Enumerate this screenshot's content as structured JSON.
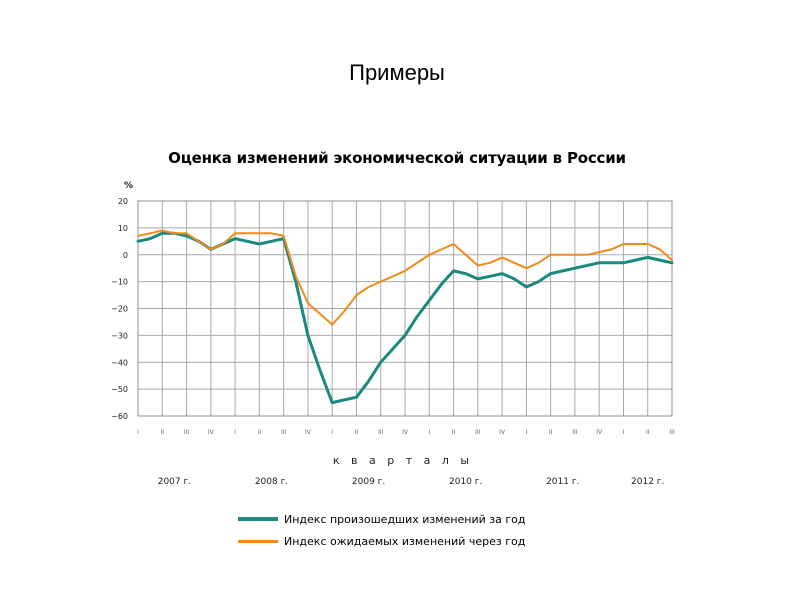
{
  "slide": {
    "title": "Примеры"
  },
  "chart_data": {
    "type": "line",
    "title": "Оценка изменений экономической ситуации в России",
    "ylabel": "%",
    "xlabel": "к в а р т а л ы",
    "ylim": [
      -60,
      20
    ],
    "yticks": [
      "20",
      "10",
      "0",
      "−10",
      "−20",
      "−30",
      "−40",
      "−50",
      "−60"
    ],
    "ytick_values": [
      20,
      10,
      0,
      -10,
      -20,
      -30,
      -40,
      -50,
      -60
    ],
    "categories": [
      "I",
      "II",
      "III",
      "IV",
      "I",
      "II",
      "III",
      "IV",
      "I",
      "II",
      "III",
      "IV",
      "I",
      "II",
      "III",
      "IV",
      "I",
      "II",
      "III",
      "IV",
      "I",
      "II",
      "III"
    ],
    "years": [
      {
        "label": "2007 г.",
        "start": 0,
        "end": 3
      },
      {
        "label": "2008 г.",
        "start": 4,
        "end": 7
      },
      {
        "label": "2009 г.",
        "start": 8,
        "end": 11
      },
      {
        "label": "2010 г.",
        "start": 12,
        "end": 15
      },
      {
        "label": "2011 г.",
        "start": 16,
        "end": 19
      },
      {
        "label": "2012 г.",
        "start": 20,
        "end": 22
      }
    ],
    "grid": true,
    "legend_position": "bottom",
    "series": [
      {
        "name": "Индекс произошедших изменений за год",
        "color": "#1a8a7e",
        "width": 3,
        "x": [
          0,
          0.5,
          1,
          1.5,
          2,
          2.5,
          3,
          3.5,
          4,
          4.5,
          5,
          5.5,
          6,
          6.5,
          7,
          7.5,
          8,
          8.5,
          9,
          9.5,
          10,
          10.5,
          11,
          11.5,
          12,
          12.5,
          13,
          13.5,
          14,
          14.5,
          15,
          15.5,
          16,
          16.5,
          17,
          17.5,
          18,
          18.5,
          19,
          19.5,
          20,
          20.5,
          21,
          21.5,
          22
        ],
        "values": [
          5,
          6,
          8,
          8,
          7,
          5,
          2,
          4,
          6,
          5,
          4,
          5,
          6,
          -10,
          -30,
          -43,
          -55,
          -54,
          -53,
          -47,
          -40,
          -35,
          -30,
          -23,
          -17,
          -11,
          -6,
          -7,
          -9,
          -8,
          -7,
          -9,
          -12,
          -10,
          -7,
          -6,
          -5,
          -4,
          -3,
          -3,
          -3,
          -2,
          -1,
          -2,
          -3
        ]
      },
      {
        "name": "Индекс ожидаемых изменений через год",
        "color": "#f08a1c",
        "width": 2,
        "x": [
          0,
          0.5,
          1,
          1.5,
          2,
          2.5,
          3,
          3.5,
          4,
          4.5,
          5,
          5.5,
          6,
          6.5,
          7,
          7.5,
          8,
          8.5,
          9,
          9.5,
          10,
          10.5,
          11,
          11.5,
          12,
          12.5,
          13,
          13.5,
          14,
          14.5,
          15,
          15.5,
          16,
          16.5,
          17,
          17.5,
          18,
          18.5,
          19,
          19.5,
          20,
          20.5,
          21,
          21.5,
          22
        ],
        "values": [
          7,
          8,
          9,
          8,
          8,
          5,
          2,
          4,
          8,
          8,
          8,
          8,
          7,
          -8,
          -18,
          -22,
          -26,
          -21,
          -15,
          -12,
          -10,
          -8,
          -6,
          -3,
          0,
          2,
          4,
          0,
          -4,
          -3,
          -1,
          -3,
          -5,
          -3,
          0,
          0,
          0,
          0,
          1,
          2,
          4,
          4,
          4,
          2,
          -2
        ]
      }
    ]
  }
}
